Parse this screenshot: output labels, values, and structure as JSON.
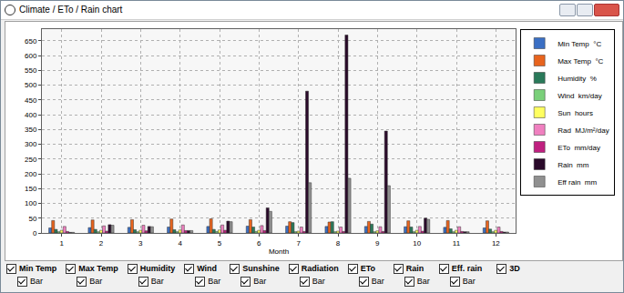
{
  "window": {
    "title": "Climate / ETo / Rain chart"
  },
  "chart_data": {
    "type": "bar",
    "x_label": "Month",
    "categories": [
      "1",
      "2",
      "3",
      "4",
      "5",
      "6",
      "7",
      "8",
      "9",
      "10",
      "11",
      "12"
    ],
    "series": [
      {
        "name": "Min Temp  °C",
        "color": "#3a6fc4",
        "values": [
          17,
          18,
          19,
          20,
          22,
          23,
          23,
          22,
          22,
          21,
          19,
          17
        ]
      },
      {
        "name": "Max Temp  °C",
        "color": "#e8641e",
        "values": [
          42,
          44,
          45,
          47,
          48,
          45,
          38,
          37,
          39,
          41,
          42,
          41
        ]
      },
      {
        "name": "Humidity  %",
        "color": "#2a7a5a",
        "values": [
          12,
          12,
          11,
          11,
          12,
          20,
          35,
          38,
          30,
          20,
          14,
          13
        ]
      },
      {
        "name": "Wind  km/day",
        "color": "#7ad07a",
        "values": [
          4,
          4,
          4,
          4,
          5,
          5,
          4,
          4,
          4,
          4,
          4,
          4
        ]
      },
      {
        "name": "Sun  hours",
        "color": "#ffff60",
        "values": [
          9,
          9,
          9,
          10,
          10,
          9,
          6,
          6,
          7,
          9,
          9,
          9
        ]
      },
      {
        "name": "Rad  MJ/m²/day",
        "color": "#f080c0",
        "values": [
          22,
          24,
          26,
          27,
          27,
          25,
          20,
          20,
          21,
          22,
          21,
          20
        ]
      },
      {
        "name": "ETo  mm/day",
        "color": "#c02080",
        "values": [
          5,
          6,
          7,
          8,
          9,
          8,
          5,
          5,
          5,
          6,
          5,
          5
        ]
      },
      {
        "name": "Rain  mm",
        "color": "#2a0a2a",
        "values": [
          2,
          28,
          22,
          8,
          40,
          85,
          480,
          670,
          345,
          50,
          4,
          3
        ]
      },
      {
        "name": "Eff rain  mm",
        "color": "#909090",
        "values": [
          2,
          26,
          21,
          8,
          38,
          73,
          170,
          185,
          160,
          46,
          4,
          3
        ]
      }
    ],
    "ylim": [
      0,
      690
    ],
    "yticks": [
      0,
      50,
      100,
      150,
      200,
      250,
      300,
      350,
      400,
      450,
      500,
      550,
      600,
      650
    ],
    "grid": true,
    "legend": "right"
  },
  "controls": {
    "checkboxes": [
      "Min Temp",
      "Max Temp",
      "Humidity",
      "Wind",
      "Sunshine",
      "Radiation",
      "ETo",
      "Rain",
      "Eff. rain"
    ],
    "sub_checkbox": "Bar",
    "option": "3D"
  }
}
